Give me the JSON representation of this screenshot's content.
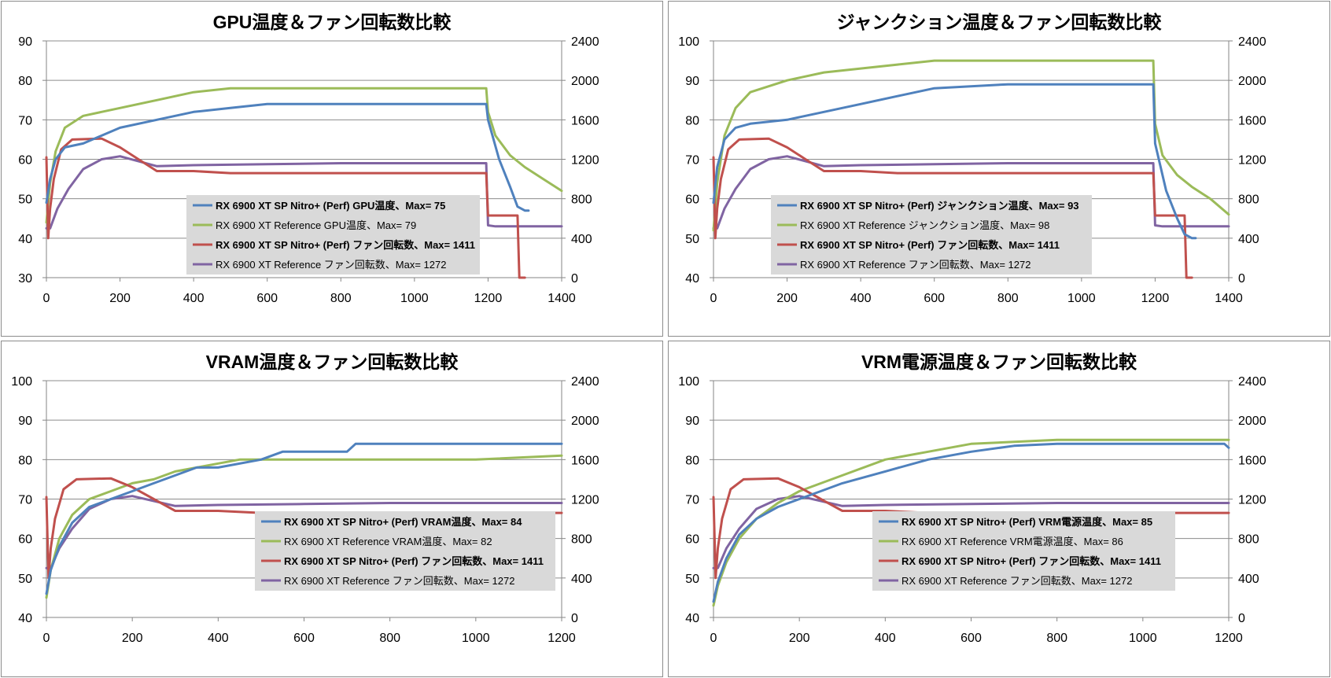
{
  "chart_data": [
    {
      "type": "line",
      "title": "GPU温度＆ファン回転数比較",
      "xlim": [
        0,
        1400
      ],
      "x_ticks": [
        0,
        200,
        400,
        600,
        800,
        1000,
        1200,
        1400
      ],
      "ylim": [
        30,
        90
      ],
      "y_ticks": [
        30,
        40,
        50,
        60,
        70,
        80,
        90
      ],
      "y2lim": [
        0,
        2400
      ],
      "y2_ticks": [
        0,
        400,
        800,
        1200,
        1600,
        2000,
        2400
      ],
      "grid": "horizontal",
      "legend_position": "lower-center",
      "series": [
        {
          "name": "RX 6900 XT SP Nitro+ (Perf) GPU温度、Max= 75",
          "axis": "left",
          "color": "#4f81bd",
          "bold": true,
          "x": [
            0,
            10,
            25,
            50,
            100,
            150,
            200,
            300,
            400,
            500,
            600,
            800,
            1000,
            1195,
            1200,
            1230,
            1260,
            1280,
            1300,
            1310
          ],
          "y": [
            49,
            55,
            60,
            63,
            64,
            66,
            68,
            70,
            72,
            73,
            74,
            74,
            74,
            74,
            70,
            60,
            53,
            48,
            47,
            47
          ]
        },
        {
          "name": "RX 6900 XT Reference GPU温度、Max= 79",
          "axis": "left",
          "color": "#9bbb59",
          "bold": false,
          "x": [
            0,
            10,
            25,
            50,
            100,
            200,
            300,
            400,
            500,
            600,
            800,
            1000,
            1195,
            1200,
            1220,
            1260,
            1300,
            1350,
            1400
          ],
          "y": [
            44,
            54,
            62,
            68,
            71,
            73,
            75,
            77,
            78,
            78,
            78,
            78,
            78,
            72,
            66,
            61,
            58,
            55,
            52
          ]
        },
        {
          "name": "RX 6900 XT SP Nitro+ (Perf) ファン回転数、Max= 1411",
          "axis": "right",
          "color": "#c0504d",
          "bold": true,
          "x": [
            0,
            5,
            10,
            20,
            40,
            70,
            150,
            200,
            250,
            300,
            400,
            500,
            700,
            900,
            1100,
            1195,
            1200,
            1280,
            1285,
            1300
          ],
          "y": [
            1220,
            400,
            700,
            1000,
            1300,
            1400,
            1410,
            1320,
            1200,
            1080,
            1080,
            1060,
            1060,
            1060,
            1060,
            1060,
            630,
            630,
            0,
            0
          ]
        },
        {
          "name": "RX 6900 XT Reference ファン回転数、Max= 1272",
          "axis": "right",
          "color": "#8064a2",
          "bold": false,
          "x": [
            0,
            10,
            30,
            60,
            100,
            150,
            200,
            300,
            400,
            600,
            800,
            1000,
            1195,
            1200,
            1220,
            1400
          ],
          "y": [
            500,
            500,
            700,
            900,
            1100,
            1200,
            1230,
            1130,
            1140,
            1150,
            1160,
            1160,
            1160,
            530,
            520,
            520
          ]
        }
      ]
    },
    {
      "type": "line",
      "title": "ジャンクション温度＆ファン回転数比較",
      "xlim": [
        0,
        1400
      ],
      "x_ticks": [
        0,
        200,
        400,
        600,
        800,
        1000,
        1200,
        1400
      ],
      "ylim": [
        40,
        100
      ],
      "y_ticks": [
        40,
        50,
        60,
        70,
        80,
        90,
        100
      ],
      "y2lim": [
        0,
        2400
      ],
      "y2_ticks": [
        0,
        400,
        800,
        1200,
        1600,
        2000,
        2400
      ],
      "grid": "horizontal",
      "legend_position": "lower-center",
      "series": [
        {
          "name": "RX 6900 XT SP Nitro+ (Perf) ジャンクション温度、Max= 93",
          "axis": "left",
          "color": "#4f81bd",
          "bold": true,
          "x": [
            0,
            10,
            30,
            60,
            100,
            200,
            300,
            400,
            500,
            600,
            800,
            1000,
            1195,
            1200,
            1230,
            1260,
            1280,
            1300,
            1310
          ],
          "y": [
            59,
            68,
            75,
            78,
            79,
            80,
            82,
            84,
            86,
            88,
            89,
            89,
            89,
            74,
            62,
            55,
            51,
            50,
            50
          ]
        },
        {
          "name": "RX 6900 XT Reference ジャンクション温度、Max= 98",
          "axis": "left",
          "color": "#9bbb59",
          "bold": false,
          "x": [
            0,
            10,
            30,
            60,
            100,
            200,
            300,
            400,
            500,
            600,
            800,
            1000,
            1195,
            1200,
            1220,
            1260,
            1300,
            1350,
            1400
          ],
          "y": [
            52,
            64,
            76,
            83,
            87,
            90,
            92,
            93,
            94,
            95,
            95,
            95,
            95,
            79,
            71,
            66,
            63,
            60,
            56
          ]
        },
        {
          "name": "RX 6900 XT SP Nitro+ (Perf) ファン回転数、Max= 1411",
          "axis": "right",
          "color": "#c0504d",
          "bold": true,
          "x": [
            0,
            5,
            10,
            20,
            40,
            70,
            150,
            200,
            250,
            300,
            400,
            500,
            700,
            900,
            1100,
            1195,
            1200,
            1280,
            1285,
            1300
          ],
          "y": [
            1220,
            400,
            700,
            1000,
            1300,
            1400,
            1410,
            1320,
            1200,
            1080,
            1080,
            1060,
            1060,
            1060,
            1060,
            1060,
            630,
            630,
            0,
            0
          ]
        },
        {
          "name": "RX 6900 XT Reference ファン回転数、Max= 1272",
          "axis": "right",
          "color": "#8064a2",
          "bold": false,
          "x": [
            0,
            10,
            30,
            60,
            100,
            150,
            200,
            300,
            400,
            600,
            800,
            1000,
            1195,
            1200,
            1220,
            1400
          ],
          "y": [
            500,
            500,
            700,
            900,
            1100,
            1200,
            1230,
            1130,
            1140,
            1150,
            1160,
            1160,
            1160,
            530,
            520,
            520
          ]
        }
      ]
    },
    {
      "type": "line",
      "title": "VRAM温度＆ファン回転数比較",
      "xlim": [
        0,
        1200
      ],
      "x_ticks": [
        0,
        200,
        400,
        600,
        800,
        1000,
        1200
      ],
      "ylim": [
        40,
        100
      ],
      "y_ticks": [
        40,
        50,
        60,
        70,
        80,
        90,
        100
      ],
      "y2lim": [
        0,
        2400
      ],
      "y2_ticks": [
        0,
        400,
        800,
        1200,
        1600,
        2000,
        2400
      ],
      "grid": "horizontal",
      "legend_position": "lower-right",
      "series": [
        {
          "name": "RX 6900 XT SP Nitro+ (Perf) VRAM温度、Max= 84",
          "axis": "left",
          "color": "#4f81bd",
          "bold": true,
          "x": [
            0,
            10,
            30,
            60,
            100,
            150,
            200,
            250,
            300,
            350,
            400,
            500,
            550,
            700,
            720,
            800,
            1000,
            1200
          ],
          "y": [
            46,
            52,
            58,
            64,
            68,
            70,
            72,
            74,
            76,
            78,
            78,
            80,
            82,
            82,
            84,
            84,
            84,
            84
          ]
        },
        {
          "name": "RX 6900 XT Reference VRAM温度、Max= 82",
          "axis": "left",
          "color": "#9bbb59",
          "bold": false,
          "x": [
            0,
            10,
            30,
            60,
            100,
            150,
            200,
            250,
            300,
            350,
            400,
            450,
            500,
            600,
            800,
            1000,
            1200
          ],
          "y": [
            45,
            52,
            60,
            66,
            70,
            72,
            74,
            75,
            77,
            78,
            79,
            80,
            80,
            80,
            80,
            80,
            81
          ]
        },
        {
          "name": "RX 6900 XT SP Nitro+ (Perf) ファン回転数、Max= 1411",
          "axis": "right",
          "color": "#c0504d",
          "bold": true,
          "x": [
            0,
            5,
            10,
            20,
            40,
            70,
            150,
            200,
            250,
            300,
            400,
            500,
            700,
            900,
            1100,
            1200
          ],
          "y": [
            1220,
            400,
            700,
            1000,
            1300,
            1400,
            1410,
            1320,
            1200,
            1080,
            1080,
            1060,
            1060,
            1060,
            1060,
            1060
          ]
        },
        {
          "name": "RX 6900 XT Reference ファン回転数、Max= 1272",
          "axis": "right",
          "color": "#8064a2",
          "bold": false,
          "x": [
            0,
            10,
            30,
            60,
            100,
            150,
            200,
            300,
            400,
            600,
            800,
            1000,
            1200
          ],
          "y": [
            500,
            500,
            700,
            900,
            1100,
            1200,
            1230,
            1130,
            1140,
            1150,
            1160,
            1160,
            1160
          ]
        }
      ]
    },
    {
      "type": "line",
      "title": "VRM電源温度＆ファン回転数比較",
      "xlim": [
        0,
        1200
      ],
      "x_ticks": [
        0,
        200,
        400,
        600,
        800,
        1000,
        1200
      ],
      "ylim": [
        40,
        100
      ],
      "y_ticks": [
        40,
        50,
        60,
        70,
        80,
        90,
        100
      ],
      "y2lim": [
        0,
        2400
      ],
      "y2_ticks": [
        0,
        400,
        800,
        1200,
        1600,
        2000,
        2400
      ],
      "grid": "horizontal",
      "legend_position": "lower-right",
      "series": [
        {
          "name": "RX 6900 XT SP Nitro+ (Perf) VRM電源温度、Max= 85",
          "axis": "left",
          "color": "#4f81bd",
          "bold": true,
          "x": [
            0,
            10,
            30,
            60,
            100,
            150,
            200,
            300,
            400,
            500,
            600,
            700,
            800,
            1000,
            1190,
            1200
          ],
          "y": [
            44,
            49,
            55,
            61,
            65,
            68,
            70,
            74,
            77,
            80,
            82,
            83.5,
            84,
            84,
            84,
            83
          ]
        },
        {
          "name": "RX 6900 XT Reference VRM電源温度、Max= 86",
          "axis": "left",
          "color": "#9bbb59",
          "bold": false,
          "x": [
            0,
            10,
            30,
            60,
            100,
            150,
            200,
            300,
            400,
            500,
            600,
            700,
            800,
            1000,
            1200
          ],
          "y": [
            43,
            48,
            54,
            60,
            65,
            69,
            72,
            76,
            80,
            82,
            84,
            84.5,
            85,
            85,
            85
          ]
        },
        {
          "name": "RX 6900 XT SP Nitro+ (Perf) ファン回転数、Max= 1411",
          "axis": "right",
          "color": "#c0504d",
          "bold": true,
          "x": [
            0,
            5,
            10,
            20,
            40,
            70,
            150,
            200,
            250,
            300,
            400,
            500,
            700,
            900,
            1100,
            1200
          ],
          "y": [
            1220,
            400,
            700,
            1000,
            1300,
            1400,
            1410,
            1320,
            1200,
            1080,
            1080,
            1060,
            1060,
            1060,
            1060,
            1060
          ]
        },
        {
          "name": "RX 6900 XT Reference ファン回転数、Max= 1272",
          "axis": "right",
          "color": "#8064a2",
          "bold": false,
          "x": [
            0,
            10,
            30,
            60,
            100,
            150,
            200,
            300,
            400,
            600,
            800,
            1000,
            1200
          ],
          "y": [
            500,
            500,
            700,
            900,
            1100,
            1200,
            1230,
            1130,
            1140,
            1150,
            1160,
            1160,
            1160
          ]
        }
      ]
    }
  ]
}
